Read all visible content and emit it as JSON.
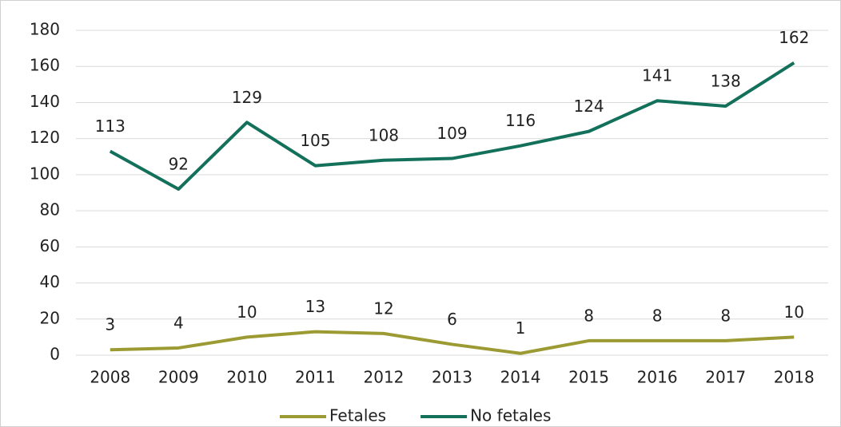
{
  "chart_data": {
    "type": "line",
    "categories": [
      "2008",
      "2009",
      "2010",
      "2011",
      "2012",
      "2013",
      "2014",
      "2015",
      "2016",
      "2017",
      "2018"
    ],
    "series": [
      {
        "name": "Fetales",
        "color": "#9c9a33",
        "values": [
          3,
          4,
          10,
          13,
          12,
          6,
          1,
          8,
          8,
          8,
          10
        ]
      },
      {
        "name": "No fetales",
        "color": "#13705a",
        "values": [
          113,
          92,
          129,
          105,
          108,
          109,
          116,
          124,
          141,
          138,
          162
        ]
      }
    ],
    "ylim": [
      0,
      180
    ],
    "yticks": [
      0,
      20,
      40,
      60,
      80,
      100,
      120,
      140,
      160,
      180
    ],
    "grid": true,
    "legend": "bottom"
  }
}
